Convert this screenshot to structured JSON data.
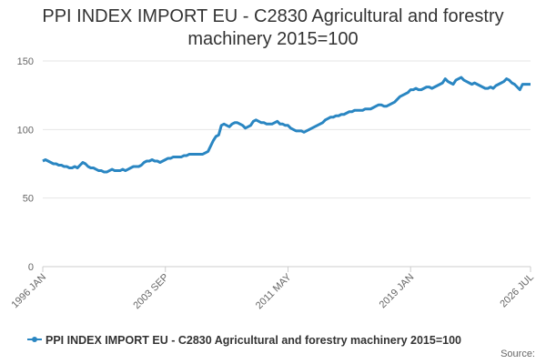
{
  "chart_data": {
    "type": "line",
    "title": "PPI INDEX IMPORT EU - C2830 Agricultural and forestry machinery 2015=100",
    "source": "Source:",
    "categories": [
      "1996 JAN",
      null,
      null,
      null,
      null,
      null,
      null,
      null,
      null,
      null,
      null,
      null,
      null,
      null,
      null,
      null,
      null,
      null,
      null,
      null,
      null,
      null,
      null,
      null,
      null,
      null,
      null,
      null,
      null,
      null,
      null,
      null,
      null,
      null,
      null,
      null,
      null,
      null,
      null,
      null,
      null,
      null,
      null,
      null,
      null,
      null,
      "2003 SEP",
      null,
      null,
      null,
      null,
      null,
      null,
      null,
      null,
      null,
      null,
      null,
      null,
      null,
      null,
      null,
      null,
      null,
      null,
      null,
      null,
      null,
      null,
      null,
      null,
      null,
      null,
      null,
      null,
      null,
      null,
      null,
      null,
      null,
      null,
      null,
      null,
      null,
      null,
      null,
      null,
      null,
      null,
      null,
      null,
      null,
      "2011 MAY",
      null,
      null,
      null,
      null,
      null,
      null,
      null,
      null,
      null,
      null,
      null,
      null,
      null,
      null,
      null,
      null,
      null,
      null,
      null,
      null,
      null,
      null,
      null,
      null,
      null,
      null,
      null,
      null,
      null,
      null,
      null,
      null,
      null,
      null,
      null,
      null,
      null,
      null,
      null,
      null,
      null,
      null,
      null,
      null,
      null,
      "2019 JAN",
      null,
      null,
      null,
      null,
      null,
      null,
      null,
      null,
      null,
      null,
      null,
      null,
      null,
      null,
      null,
      null,
      null,
      null,
      null,
      null,
      null,
      null,
      null,
      null,
      null,
      null,
      null,
      null,
      null,
      null,
      null,
      null,
      null,
      null,
      null,
      null,
      null,
      null,
      null,
      null,
      null,
      null,
      null,
      null,
      "2026 JUL"
    ],
    "series": [
      {
        "name": "PPI INDEX IMPORT EU - C2830 Agricultural and forestry machinery 2015=100",
        "color": "#2a86c2",
        "values": [
          77,
          78,
          77,
          76,
          75,
          75,
          74,
          74,
          73,
          73,
          72,
          72,
          73,
          72,
          74,
          76,
          75,
          73,
          72,
          72,
          71,
          70,
          70,
          69,
          69,
          70,
          71,
          70,
          70,
          70,
          71,
          70,
          71,
          72,
          73,
          73,
          73,
          74,
          76,
          77,
          77,
          78,
          77,
          77,
          76,
          77,
          78,
          79,
          79,
          80,
          80,
          80,
          80,
          81,
          81,
          82,
          82,
          82,
          82,
          82,
          82,
          83,
          84,
          88,
          92,
          95,
          96,
          103,
          104,
          103,
          102,
          104,
          105,
          105,
          104,
          103,
          101,
          102,
          103,
          106,
          107,
          106,
          105,
          105,
          104,
          104,
          104,
          105,
          106,
          104,
          104,
          103,
          103,
          101,
          100,
          99,
          99,
          99,
          98,
          99,
          100,
          101,
          102,
          103,
          104,
          105,
          107,
          108,
          109,
          109,
          110,
          110,
          111,
          111,
          112,
          113,
          113,
          114,
          114,
          114,
          114,
          115,
          115,
          115,
          116,
          117,
          118,
          118,
          117,
          117,
          118,
          119,
          120,
          122,
          124,
          125,
          126,
          127,
          129,
          129,
          130,
          129,
          129,
          130,
          131,
          131,
          130,
          131,
          132,
          133,
          134,
          137,
          135,
          134,
          133,
          136,
          137,
          138,
          136,
          135,
          134,
          133,
          134,
          133,
          132,
          131,
          130,
          130,
          131,
          130,
          132,
          133,
          134,
          135,
          137,
          136,
          134,
          133,
          131,
          129,
          133,
          133,
          133,
          133
        ]
      }
    ],
    "ylim": [
      0,
      150
    ],
    "yticks": [
      0,
      50,
      100,
      150
    ],
    "grid": true
  }
}
